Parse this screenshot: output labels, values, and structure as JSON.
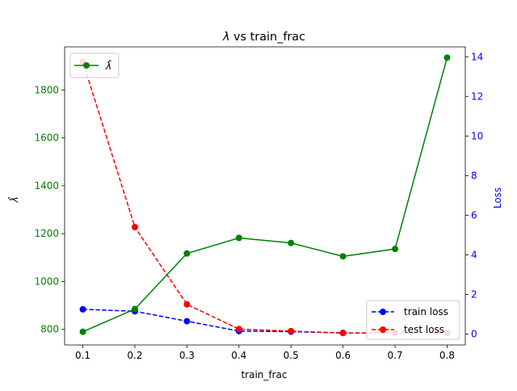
{
  "chart_data": {
    "type": "line",
    "title": "λ vs train_frac",
    "title_symbol": "λ",
    "title_rest": " vs train_frac",
    "xlabel": "train_frac",
    "ylabel_left": "λ̂",
    "ylabel_right": "Loss",
    "x": [
      0.1,
      0.2,
      0.3,
      0.4,
      0.5,
      0.6,
      0.7,
      0.8
    ],
    "xlim": [
      0.065,
      0.835
    ],
    "ylim_left": [
      735,
      1980
    ],
    "ylim_right": [
      -0.55,
      14.5
    ],
    "x_ticks": [
      "0.1",
      "0.2",
      "0.3",
      "0.4",
      "0.5",
      "0.6",
      "0.7",
      "0.8"
    ],
    "y_left_ticks": [
      800,
      1000,
      1200,
      1400,
      1600,
      1800
    ],
    "y_right_ticks": [
      0,
      2,
      4,
      6,
      8,
      10,
      12,
      14
    ],
    "series": [
      {
        "name": "λ̂",
        "axis": "left",
        "color": "#008000",
        "dash": "solid",
        "values": [
          790,
          885,
          1117,
          1182,
          1161,
          1105,
          1136,
          1935
        ]
      },
      {
        "name": "train loss",
        "axis": "right",
        "color": "#0000ff",
        "dash": "dashed",
        "values": [
          1.25,
          1.15,
          0.65,
          0.15,
          0.12,
          0.06,
          0.05,
          0.06
        ]
      },
      {
        "name": "test loss",
        "axis": "right",
        "color": "#ff0000",
        "dash": "dashed",
        "values": [
          13.75,
          5.4,
          1.5,
          0.25,
          0.15,
          0.05,
          0.05,
          0.05
        ]
      }
    ],
    "legend_left": {
      "placement": "upper-left",
      "entries": [
        "λ̂"
      ]
    },
    "legend_right": {
      "placement": "lower-right",
      "entries": [
        "train loss",
        "test loss"
      ]
    },
    "colors": {
      "left_axis": "#008000",
      "right_axis": "#0000ff"
    },
    "grid": false
  }
}
